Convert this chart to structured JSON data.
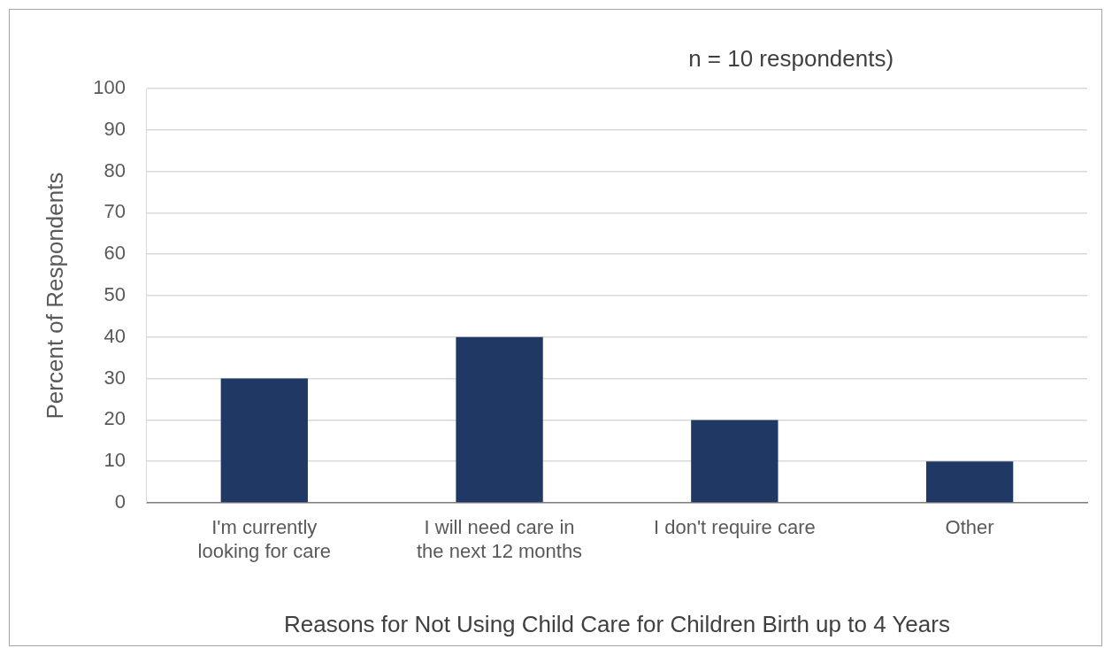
{
  "chart_data": {
    "type": "bar",
    "title": "n = 10 respondents)",
    "xlabel": "Reasons for Not Using Child Care for Children Birth up to 4 Years",
    "ylabel": "Percent of Respondents",
    "categories": [
      "I'm currently looking for care",
      "I will need care in the next 12 months",
      "I don't require care",
      "Other"
    ],
    "values": [
      30,
      40,
      20,
      10
    ],
    "color": "#1f3864",
    "ylim": [
      0,
      100
    ],
    "yticks": [
      0,
      10,
      20,
      30,
      40,
      50,
      60,
      70,
      80,
      90,
      100
    ],
    "grid": "y",
    "legend": false
  }
}
